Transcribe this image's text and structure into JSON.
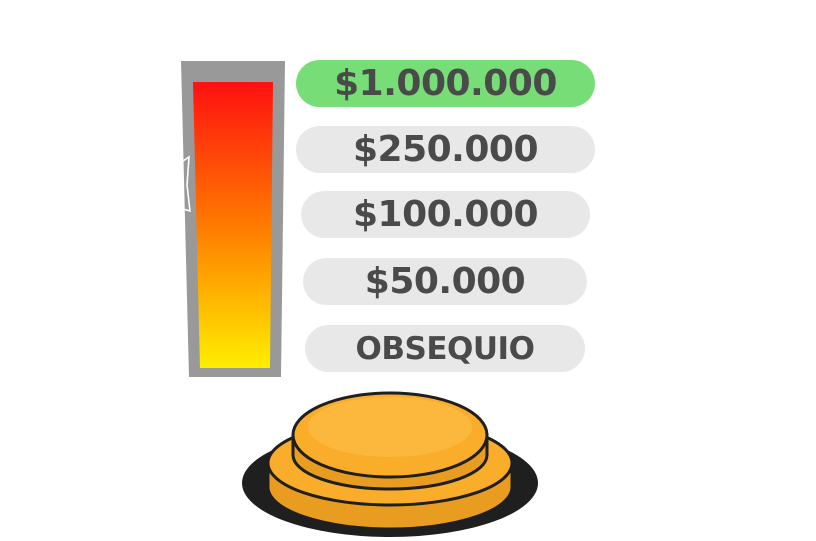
{
  "meter": {
    "level": 1.0,
    "frame_color": "#999999",
    "gradient_top": "#ff1010",
    "gradient_mid": "#ff7a00",
    "gradient_bottom": "#ffee00"
  },
  "prizes": [
    {
      "label": "$1.000.000",
      "active": true
    },
    {
      "label": "$250.000",
      "active": false
    },
    {
      "label": "$100.000",
      "active": false
    },
    {
      "label": "$50.000",
      "active": false
    },
    {
      "label": "OBSEQUIO",
      "active": false
    }
  ],
  "colors": {
    "active_prize": "#77dd77",
    "inactive_prize": "#e8e8e8",
    "prize_text": "#4a4a4a",
    "buzzer": "#f9ad2a",
    "buzzer_outline": "#1f1f1f"
  }
}
